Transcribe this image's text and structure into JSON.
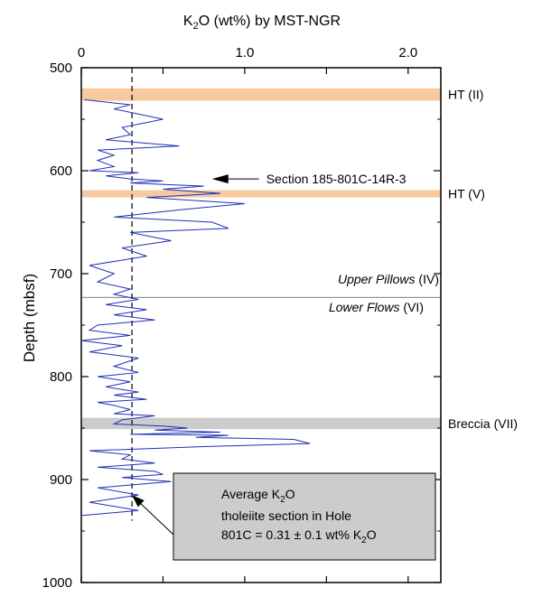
{
  "chart_data": {
    "type": "line",
    "title": {
      "prefix": "K",
      "sub": "2",
      "suffix": "O (wt%) by MST-NGR"
    },
    "ylabel": "Depth (mbsf)",
    "xlim": [
      0,
      2.2
    ],
    "ylim": [
      500,
      1000
    ],
    "x_ticks": [
      0,
      0.5,
      1.0,
      1.5,
      2.0
    ],
    "x_tick_labels": [
      "0",
      "",
      "1.0",
      "",
      "2.0"
    ],
    "y_ticks": [
      500,
      600,
      700,
      800,
      900,
      1000
    ],
    "y_tick_labels": [
      "500",
      "600",
      "700",
      "800",
      "900",
      "1000"
    ],
    "line_color": "#1f2fb5",
    "average": {
      "x": 0.31,
      "y_from": 500,
      "y_to": 940
    },
    "bands": [
      {
        "label": "HT (II)",
        "y_from": 520,
        "y_to": 532,
        "color": "#f8c9a0"
      },
      {
        "label": "HT (V)",
        "y_from": 619,
        "y_to": 626,
        "color": "#f8c9a0"
      },
      {
        "label": "Breccia (VII)",
        "y_from": 840,
        "y_to": 851,
        "color": "#cccccc"
      }
    ],
    "boundary": {
      "y": 723,
      "label_above_italic": "Upper Pillows",
      "label_above_rest": " (IV)",
      "label_below_italic": "Lower Flows",
      "label_below_rest": " (VI)"
    },
    "arrow_annotation": {
      "label": "Section 185-801C-14R-3",
      "x": 0.8,
      "y": 608
    },
    "callout": {
      "line1_prefix": "Average K",
      "line1_sub": "2",
      "line1_suffix": "O",
      "line2": "tholeiite section in Hole",
      "line3_prefix": "801C = 0.31 ± 0.1 wt% K",
      "line3_sub": "2",
      "line3_suffix": "O",
      "bg_color": "#cccccc",
      "arrow_to": {
        "x": 0.31,
        "y": 915
      }
    },
    "x": [
      0.02,
      0.3,
      0.2,
      0.5,
      0.25,
      0.3,
      0.15,
      0.6,
      0.1,
      0.2,
      0.1,
      0.2,
      0.05,
      0.35,
      0.15,
      0.3,
      0.5,
      0.3,
      0.75,
      0.5,
      0.85,
      0.4,
      1.0,
      0.6,
      0.2,
      0.8,
      0.9,
      0.3,
      0.55,
      0.25,
      0.4,
      0.05,
      0.2,
      0.1,
      0.3,
      0.2,
      0.35,
      0.15,
      0.4,
      0.2,
      0.45,
      0.1,
      0.05,
      0.3,
      0.0,
      0.25,
      0.05,
      0.35,
      0.2,
      0.35,
      0.1,
      0.3,
      0.15,
      0.35,
      0.2,
      0.4,
      0.1,
      0.2,
      0.3,
      0.2,
      0.45,
      0.25,
      0.2,
      0.5,
      0.65,
      0.45,
      0.85,
      0.3,
      0.9,
      0.7,
      1.3,
      1.4,
      0.75,
      0.05,
      0.3,
      0.25,
      0.45,
      0.1,
      0.45,
      0.5,
      0.25,
      0.55,
      0.1,
      0.35,
      0.05,
      0.35,
      0.0
    ],
    "y": [
      531,
      536,
      540,
      550,
      558,
      565,
      570,
      576,
      580,
      585,
      590,
      596,
      600,
      602,
      605,
      608,
      610,
      612,
      615,
      618,
      622,
      626,
      632,
      638,
      645,
      650,
      656,
      660,
      668,
      675,
      683,
      692,
      700,
      708,
      715,
      720,
      725,
      730,
      735,
      740,
      745,
      750,
      755,
      760,
      765,
      770,
      776,
      782,
      790,
      796,
      800,
      805,
      810,
      815,
      818,
      822,
      825,
      828,
      832,
      836,
      838,
      842,
      846,
      848,
      850,
      852,
      854,
      856,
      857,
      859,
      861,
      865,
      868,
      872,
      876,
      880,
      884,
      888,
      892,
      895,
      898,
      902,
      908,
      915,
      922,
      930,
      935
    ]
  }
}
